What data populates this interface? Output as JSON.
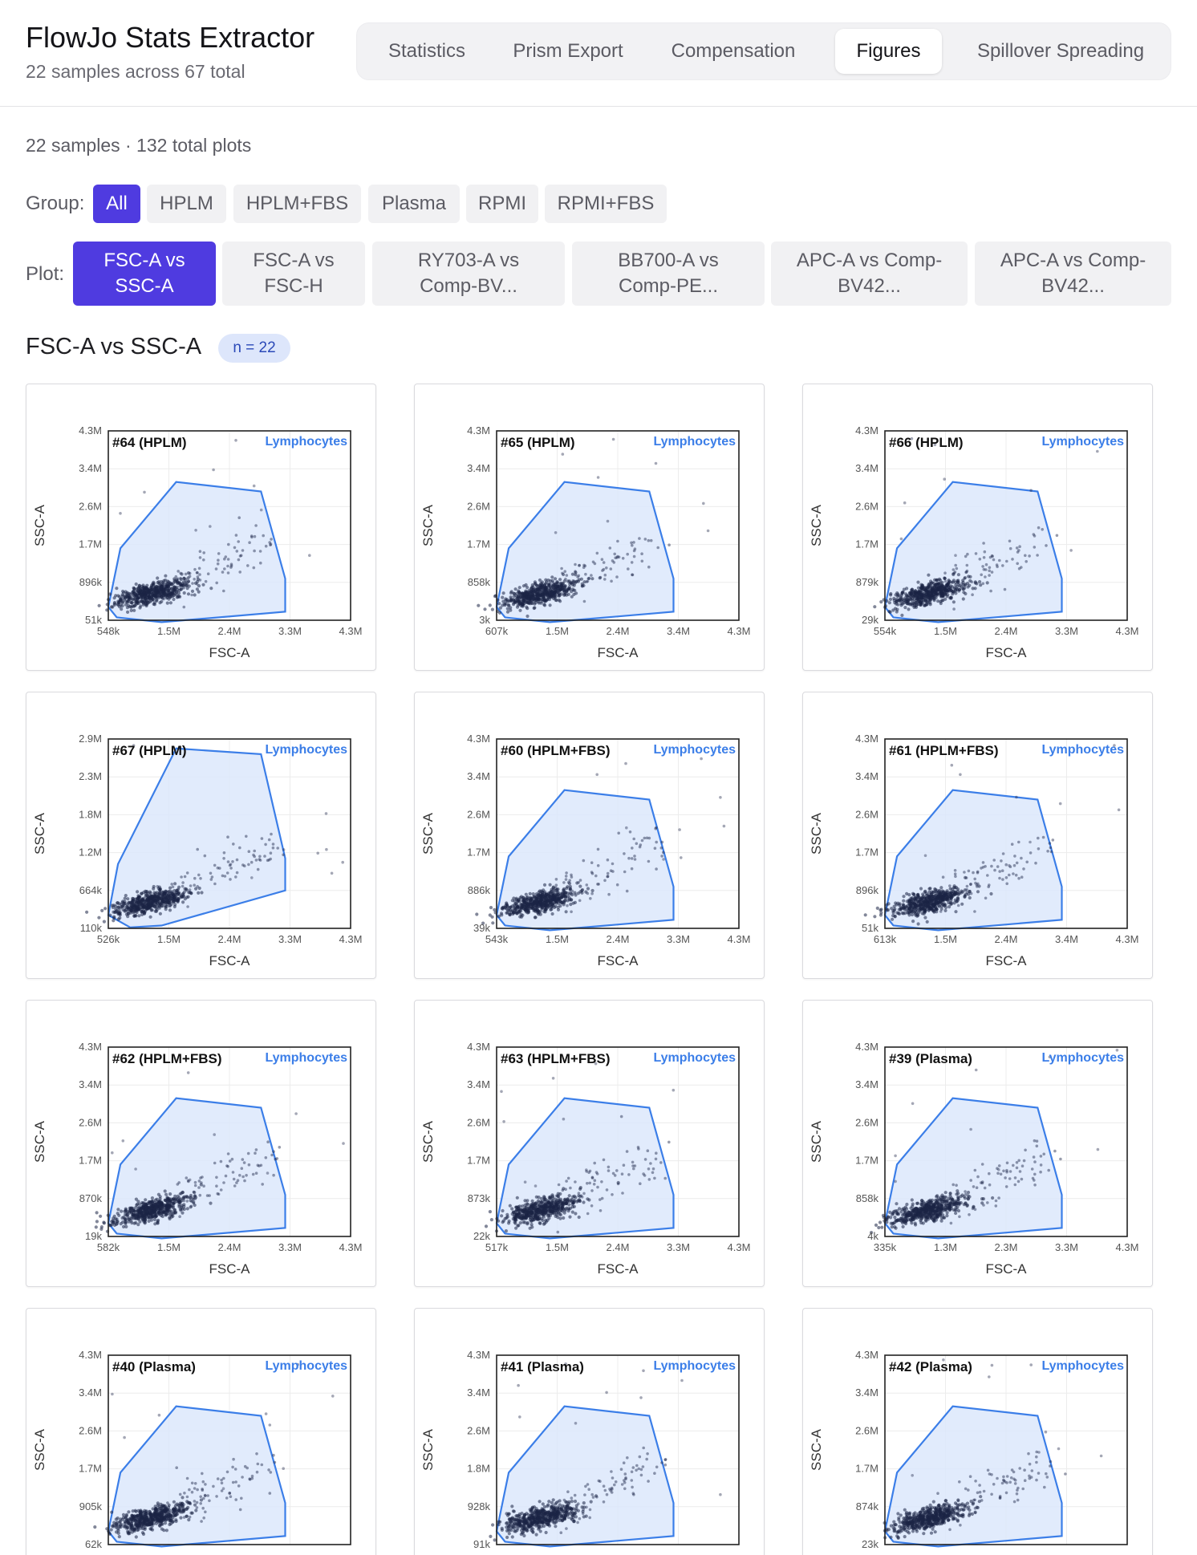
{
  "header": {
    "title": "FlowJo Stats Extractor",
    "subtitle": "22 samples across 67 total",
    "tabs": [
      {
        "label": "Statistics",
        "active": false
      },
      {
        "label": "Prism Export",
        "active": false
      },
      {
        "label": "Compensation",
        "active": false
      },
      {
        "label": "Figures",
        "active": true
      },
      {
        "label": "Spillover Spreading",
        "active": false
      }
    ]
  },
  "summary": "22 samples · 132 total plots",
  "groups": {
    "label": "Group:",
    "options": [
      {
        "label": "All",
        "active": true
      },
      {
        "label": "HPLM",
        "active": false
      },
      {
        "label": "HPLM+FBS",
        "active": false
      },
      {
        "label": "Plasma",
        "active": false
      },
      {
        "label": "RPMI",
        "active": false
      },
      {
        "label": "RPMI+FBS",
        "active": false
      }
    ]
  },
  "plots": {
    "label": "Plot:",
    "options": [
      {
        "line1": "FSC-A vs",
        "line2": "SSC-A",
        "active": true
      },
      {
        "line1": "FSC-A vs",
        "line2": "FSC-H",
        "active": false
      },
      {
        "line1": "RY703-A vs",
        "line2": "Comp-BV...",
        "active": false
      },
      {
        "line1": "BB700-A vs",
        "line2": "Comp-PE...",
        "active": false
      },
      {
        "line1": "APC-A vs Comp-",
        "line2": "BV42...",
        "active": false
      },
      {
        "line1": "APC-A vs Comp-",
        "line2": "BV42...",
        "active": false
      }
    ]
  },
  "section": {
    "title": "FSC-A vs SSC-A",
    "count_badge": "n = 22"
  },
  "figure_common": {
    "xlabel": "FSC-A",
    "ylabel": "SSC-A",
    "gate_name": "Lymphocytes",
    "gate_color": "#3b7ee8",
    "gate_fill": "#dce8fb",
    "point_color": "#1b2446"
  },
  "chart_data": [
    {
      "type": "scatter",
      "title": "#64 (HPLM)",
      "xlabel": "FSC-A",
      "ylabel": "SSC-A",
      "x_ticks": [
        "548k",
        "1.5M",
        "2.4M",
        "3.3M",
        "4.3M"
      ],
      "y_ticks": [
        "51k",
        "896k",
        "1.7M",
        "2.6M",
        "3.4M",
        "4.3M"
      ],
      "xlim": [
        548000,
        4300000
      ],
      "ylim": [
        51000,
        4300000
      ]
    },
    {
      "type": "scatter",
      "title": "#65 (HPLM)",
      "xlabel": "FSC-A",
      "ylabel": "SSC-A",
      "x_ticks": [
        "607k",
        "1.5M",
        "2.4M",
        "3.4M",
        "4.3M"
      ],
      "y_ticks": [
        "3k",
        "858k",
        "1.7M",
        "2.6M",
        "3.4M",
        "4.3M"
      ],
      "xlim": [
        607000,
        4300000
      ],
      "ylim": [
        3000,
        4300000
      ]
    },
    {
      "type": "scatter",
      "title": "#66 (HPLM)",
      "xlabel": "FSC-A",
      "ylabel": "SSC-A",
      "x_ticks": [
        "554k",
        "1.5M",
        "2.4M",
        "3.3M",
        "4.3M"
      ],
      "y_ticks": [
        "29k",
        "879k",
        "1.7M",
        "2.6M",
        "3.4M",
        "4.3M"
      ],
      "xlim": [
        554000,
        4300000
      ],
      "ylim": [
        29000,
        4300000
      ]
    },
    {
      "type": "scatter",
      "title": "#67 (HPLM)",
      "xlabel": "FSC-A",
      "ylabel": "SSC-A",
      "x_ticks": [
        "526k",
        "1.5M",
        "2.4M",
        "3.3M",
        "4.3M"
      ],
      "y_ticks": [
        "110k",
        "664k",
        "1.2M",
        "1.8M",
        "2.3M",
        "2.9M"
      ],
      "xlim": [
        526000,
        4300000
      ],
      "ylim": [
        110000,
        2900000
      ]
    },
    {
      "type": "scatter",
      "title": "#60 (HPLM+FBS)",
      "xlabel": "FSC-A",
      "ylabel": "SSC-A",
      "x_ticks": [
        "543k",
        "1.5M",
        "2.4M",
        "3.3M",
        "4.3M"
      ],
      "y_ticks": [
        "39k",
        "886k",
        "1.7M",
        "2.6M",
        "3.4M",
        "4.3M"
      ],
      "xlim": [
        543000,
        4300000
      ],
      "ylim": [
        39000,
        4300000
      ]
    },
    {
      "type": "scatter",
      "title": "#61 (HPLM+FBS)",
      "xlabel": "FSC-A",
      "ylabel": "SSC-A",
      "x_ticks": [
        "613k",
        "1.5M",
        "2.4M",
        "3.4M",
        "4.3M"
      ],
      "y_ticks": [
        "51k",
        "896k",
        "1.7M",
        "2.6M",
        "3.4M",
        "4.3M"
      ],
      "xlim": [
        613000,
        4300000
      ],
      "ylim": [
        51000,
        4300000
      ]
    },
    {
      "type": "scatter",
      "title": "#62 (HPLM+FBS)",
      "xlabel": "FSC-A",
      "ylabel": "SSC-A",
      "x_ticks": [
        "582k",
        "1.5M",
        "2.4M",
        "3.3M",
        "4.3M"
      ],
      "y_ticks": [
        "19k",
        "870k",
        "1.7M",
        "2.6M",
        "3.4M",
        "4.3M"
      ],
      "xlim": [
        582000,
        4300000
      ],
      "ylim": [
        19000,
        4300000
      ]
    },
    {
      "type": "scatter",
      "title": "#63 (HPLM+FBS)",
      "xlabel": "FSC-A",
      "ylabel": "SSC-A",
      "x_ticks": [
        "517k",
        "1.5M",
        "2.4M",
        "3.3M",
        "4.3M"
      ],
      "y_ticks": [
        "22k",
        "873k",
        "1.7M",
        "2.6M",
        "3.4M",
        "4.3M"
      ],
      "xlim": [
        517000,
        4300000
      ],
      "ylim": [
        22000,
        4300000
      ]
    },
    {
      "type": "scatter",
      "title": "#39 (Plasma)",
      "xlabel": "FSC-A",
      "ylabel": "SSC-A",
      "x_ticks": [
        "335k",
        "1.3M",
        "2.3M",
        "3.3M",
        "4.3M"
      ],
      "y_ticks": [
        "4k",
        "858k",
        "1.7M",
        "2.6M",
        "3.4M",
        "4.3M"
      ],
      "xlim": [
        335000,
        4300000
      ],
      "ylim": [
        4000,
        4300000
      ]
    },
    {
      "type": "scatter",
      "title": "#40 (Plasma)",
      "xlabel": "FSC-A",
      "ylabel": "SSC-A",
      "x_ticks": [],
      "y_ticks": [
        "62k",
        "905k",
        "1.7M",
        "2.6M",
        "3.4M",
        "4.3M"
      ],
      "ylim": [
        62000,
        4300000
      ]
    },
    {
      "type": "scatter",
      "title": "#41 (Plasma)",
      "xlabel": "FSC-A",
      "ylabel": "SSC-A",
      "x_ticks": [],
      "y_ticks": [
        "91k",
        "928k",
        "1.8M",
        "2.6M",
        "3.4M",
        "4.3M"
      ],
      "ylim": [
        91000,
        4300000
      ]
    },
    {
      "type": "scatter",
      "title": "#42 (Plasma)",
      "xlabel": "FSC-A",
      "ylabel": "SSC-A",
      "x_ticks": [],
      "y_ticks": [
        "23k",
        "874k",
        "1.7M",
        "2.6M",
        "3.4M",
        "4.3M"
      ],
      "ylim": [
        23000,
        4300000
      ]
    }
  ]
}
